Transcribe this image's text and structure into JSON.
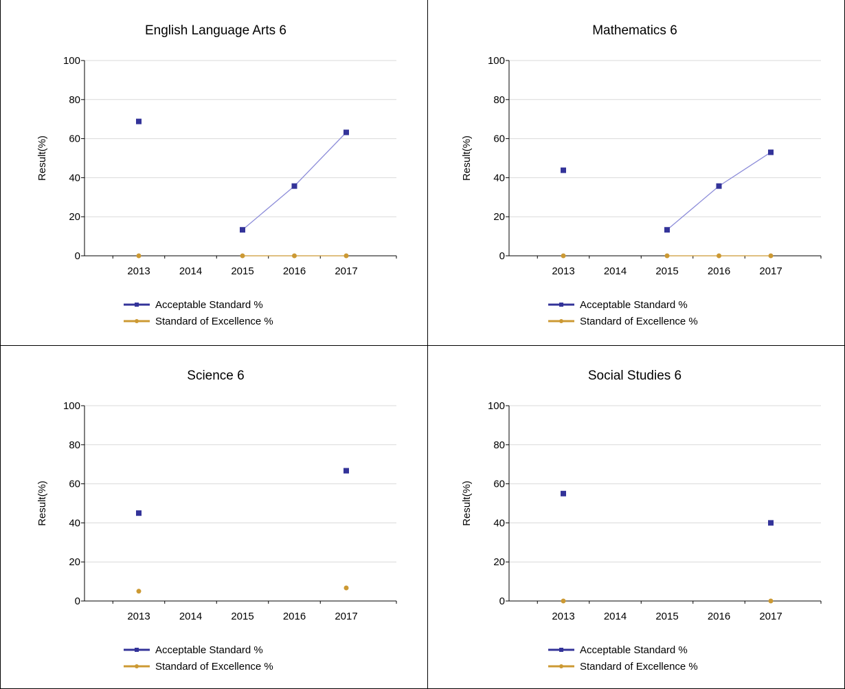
{
  "colors": {
    "acceptable": "#333399",
    "excellence": "#CC9933",
    "grid": "#D9D9D9",
    "axis": "#000000",
    "border": "#000000"
  },
  "chart_data": [
    {
      "type": "scatter",
      "title": "English Language Arts 6",
      "ylabel": "Result(%)",
      "xlabel": "",
      "categories": [
        "2013",
        "2014",
        "2015",
        "2016",
        "2017"
      ],
      "ylim": [
        0,
        100
      ],
      "yticks": [
        0,
        20,
        40,
        60,
        80,
        100
      ],
      "grid": true,
      "legend_position": "bottom",
      "series": [
        {
          "name": "Acceptable Standard %",
          "color": "#333399",
          "marker": "square",
          "values": [
            68.8,
            null,
            13.3,
            35.7,
            63.2
          ]
        },
        {
          "name": "Standard of Excellence %",
          "color": "#CC9933",
          "marker": "circle",
          "values": [
            0,
            null,
            0,
            0,
            0
          ]
        }
      ]
    },
    {
      "type": "scatter",
      "title": "Mathematics 6",
      "ylabel": "Result(%)",
      "xlabel": "",
      "categories": [
        "2013",
        "2014",
        "2015",
        "2016",
        "2017"
      ],
      "ylim": [
        0,
        100
      ],
      "yticks": [
        0,
        20,
        40,
        60,
        80,
        100
      ],
      "grid": true,
      "legend_position": "bottom",
      "series": [
        {
          "name": "Acceptable Standard %",
          "color": "#333399",
          "marker": "square",
          "values": [
            43.8,
            null,
            13.3,
            35.7,
            53.0
          ]
        },
        {
          "name": "Standard of Excellence %",
          "color": "#CC9933",
          "marker": "circle",
          "values": [
            0,
            null,
            0,
            0,
            0
          ]
        }
      ]
    },
    {
      "type": "scatter",
      "title": "Science 6",
      "ylabel": "Result(%)",
      "xlabel": "",
      "categories": [
        "2013",
        "2014",
        "2015",
        "2016",
        "2017"
      ],
      "ylim": [
        0,
        100
      ],
      "yticks": [
        0,
        20,
        40,
        60,
        80,
        100
      ],
      "grid": true,
      "legend_position": "bottom",
      "series": [
        {
          "name": "Acceptable Standard %",
          "color": "#333399",
          "marker": "square",
          "values": [
            45.0,
            null,
            null,
            null,
            66.7
          ]
        },
        {
          "name": "Standard of Excellence %",
          "color": "#CC9933",
          "marker": "circle",
          "values": [
            5.0,
            null,
            null,
            null,
            6.7
          ]
        }
      ]
    },
    {
      "type": "scatter",
      "title": "Social Studies 6",
      "ylabel": "Result(%)",
      "xlabel": "",
      "categories": [
        "2013",
        "2014",
        "2015",
        "2016",
        "2017"
      ],
      "ylim": [
        0,
        100
      ],
      "yticks": [
        0,
        20,
        40,
        60,
        80,
        100
      ],
      "grid": true,
      "legend_position": "bottom",
      "series": [
        {
          "name": "Acceptable Standard %",
          "color": "#333399",
          "marker": "square",
          "values": [
            55.0,
            null,
            null,
            null,
            40.0
          ]
        },
        {
          "name": "Standard of Excellence %",
          "color": "#CC9933",
          "marker": "circle",
          "values": [
            0,
            null,
            null,
            null,
            0
          ]
        }
      ]
    }
  ]
}
